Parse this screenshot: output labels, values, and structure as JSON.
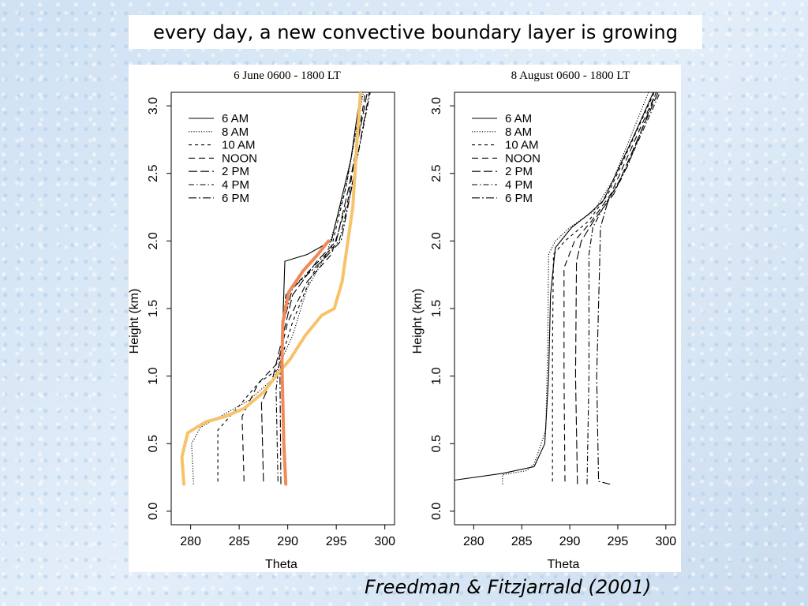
{
  "slide": {
    "title": "every day, a new convective boundary layer is growing",
    "citation": "Freedman & Fitzjarrald (2001)"
  },
  "colors": {
    "highlight_orange_light": "#f7c36a",
    "highlight_orange_dark": "#f08a5a",
    "line": "#000000"
  },
  "chart_data": [
    {
      "type": "line",
      "title": "6 June 0600 - 1800 LT",
      "xlabel": "Theta",
      "ylabel": "Height (km)",
      "xlim": [
        278,
        301
      ],
      "ylim": [
        -0.1,
        3.1
      ],
      "xticks": [
        "280",
        "285",
        "290",
        "295",
        "300"
      ],
      "yticks": [
        "0.0",
        "0.5",
        "1.0",
        "1.5",
        "2.0",
        "2.5",
        "3.0"
      ],
      "legend_position": "top-left",
      "series": [
        {
          "name": "6 AM",
          "style": "solid",
          "points": [
            [
              289.8,
              0.2
            ],
            [
              289.5,
              0.5
            ],
            [
              289.5,
              1.0
            ],
            [
              289.5,
              1.4
            ],
            [
              289.7,
              1.85
            ],
            [
              292,
              1.9
            ],
            [
              294.5,
              2.0
            ],
            [
              295.5,
              2.3
            ],
            [
              296.5,
              2.6
            ],
            [
              297.5,
              3.1
            ]
          ]
        },
        {
          "name": "8 AM",
          "style": "dotted",
          "points": [
            [
              280.3,
              0.2
            ],
            [
              280.1,
              0.5
            ],
            [
              281,
              0.62
            ],
            [
              283,
              0.7
            ],
            [
              286,
              0.82
            ],
            [
              288.5,
              0.98
            ],
            [
              290.5,
              1.3
            ],
            [
              292,
              1.65
            ],
            [
              294,
              1.9
            ],
            [
              296,
              2.4
            ],
            [
              297.8,
              3.1
            ]
          ]
        },
        {
          "name": "10 AM",
          "style": "dashed",
          "points": [
            [
              282.8,
              0.22
            ],
            [
              282.8,
              0.6
            ],
            [
              285,
              0.78
            ],
            [
              287,
              0.95
            ],
            [
              289,
              1.05
            ],
            [
              290.5,
              1.4
            ],
            [
              292.5,
              1.75
            ],
            [
              294.5,
              1.95
            ],
            [
              296,
              2.4
            ],
            [
              297.7,
              3.1
            ]
          ]
        },
        {
          "name": "NOON",
          "style": "longdash",
          "points": [
            [
              285.5,
              0.22
            ],
            [
              285.3,
              0.7
            ],
            [
              287,
              0.95
            ],
            [
              289,
              1.1
            ],
            [
              290,
              1.4
            ],
            [
              292,
              1.7
            ],
            [
              294.5,
              1.9
            ],
            [
              296.2,
              2.3
            ],
            [
              298,
              3.1
            ]
          ]
        },
        {
          "name": "2 PM",
          "style": "longdash2",
          "points": [
            [
              287.5,
              0.22
            ],
            [
              287.3,
              0.8
            ],
            [
              288.5,
              1.0
            ],
            [
              289.5,
              1.3
            ],
            [
              290.5,
              1.6
            ],
            [
              293,
              1.85
            ],
            [
              295,
              2.0
            ],
            [
              296.3,
              2.4
            ],
            [
              298.2,
              3.1
            ]
          ]
        },
        {
          "name": "4 PM",
          "style": "dashdot",
          "points": [
            [
              289,
              0.22
            ],
            [
              288.8,
              0.9
            ],
            [
              289.3,
              1.2
            ],
            [
              289.8,
              1.6
            ],
            [
              292.5,
              1.8
            ],
            [
              295.3,
              2.0
            ],
            [
              296.3,
              2.3
            ],
            [
              298.5,
              3.1
            ]
          ]
        },
        {
          "name": "6 PM",
          "style": "longdashdot",
          "points": [
            [
              289.3,
              0.2
            ],
            [
              289.2,
              1.0
            ],
            [
              289.6,
              1.4
            ],
            [
              290.5,
              1.65
            ],
            [
              293.5,
              1.85
            ],
            [
              295.5,
              2.0
            ],
            [
              296.6,
              2.4
            ],
            [
              298.4,
              3.1
            ]
          ]
        }
      ],
      "highlights": [
        {
          "color": "#f7c36a",
          "points": [
            [
              279.3,
              0.2
            ],
            [
              279.1,
              0.4
            ],
            [
              279.7,
              0.58
            ],
            [
              281.5,
              0.66
            ],
            [
              283.5,
              0.7
            ],
            [
              285.5,
              0.76
            ],
            [
              287.5,
              0.88
            ],
            [
              289,
              1.02
            ],
            [
              290.2,
              1.12
            ],
            [
              291.8,
              1.3
            ],
            [
              293.5,
              1.45
            ],
            [
              294.8,
              1.5
            ],
            [
              295.6,
              1.7
            ],
            [
              296.1,
              1.95
            ],
            [
              296.7,
              2.25
            ],
            [
              297.1,
              2.7
            ],
            [
              297.5,
              3.1
            ]
          ]
        },
        {
          "color": "#f08a5a",
          "points": [
            [
              289.8,
              0.2
            ],
            [
              289.6,
              0.5
            ],
            [
              289.5,
              0.8
            ],
            [
              289.4,
              1.1
            ],
            [
              289.5,
              1.4
            ],
            [
              290.1,
              1.62
            ],
            [
              291.6,
              1.78
            ],
            [
              293.1,
              1.9
            ],
            [
              294.2,
              2.0
            ]
          ]
        }
      ]
    },
    {
      "type": "line",
      "title": "8 August 0600 - 1800 LT",
      "xlabel": "Theta",
      "ylabel": "Height (km)",
      "xlim": [
        278,
        301
      ],
      "ylim": [
        -0.1,
        3.1
      ],
      "xticks": [
        "280",
        "285",
        "290",
        "295",
        "300"
      ],
      "yticks": [
        "0.0",
        "0.5",
        "1.0",
        "1.5",
        "2.0",
        "2.5",
        "3.0"
      ],
      "legend_position": "top-left",
      "series": [
        {
          "name": "6 AM",
          "style": "solid",
          "points": [
            [
              278,
              0.23
            ],
            [
              283,
              0.28
            ],
            [
              286.3,
              0.33
            ],
            [
              287.4,
              0.5
            ],
            [
              287.8,
              1.0
            ],
            [
              288,
              1.6
            ],
            [
              288.5,
              1.95
            ],
            [
              290.2,
              2.1
            ],
            [
              292,
              2.2
            ],
            [
              293.5,
              2.3
            ],
            [
              294.5,
              2.45
            ],
            [
              296.5,
              2.75
            ],
            [
              298.7,
              3.1
            ]
          ]
        },
        {
          "name": "8 AM",
          "style": "dotted",
          "points": [
            [
              283,
              0.2
            ],
            [
              283,
              0.27
            ],
            [
              285.5,
              0.3
            ],
            [
              286.3,
              0.35
            ],
            [
              287.5,
              0.6
            ],
            [
              287.7,
              1.2
            ],
            [
              287.8,
              1.9
            ],
            [
              288.5,
              2.0
            ],
            [
              290,
              2.1
            ],
            [
              292.5,
              2.22
            ],
            [
              294.5,
              2.45
            ],
            [
              298.2,
              3.1
            ]
          ]
        },
        {
          "name": "10 AM",
          "style": "dashed",
          "points": [
            [
              288.2,
              0.22
            ],
            [
              288.2,
              1.2
            ],
            [
              288.3,
              1.9
            ],
            [
              289.5,
              2.0
            ],
            [
              292,
              2.15
            ],
            [
              294,
              2.35
            ],
            [
              298.8,
              3.1
            ]
          ]
        },
        {
          "name": "NOON",
          "style": "longdash",
          "points": [
            [
              289.5,
              0.22
            ],
            [
              289.4,
              1.0
            ],
            [
              289.4,
              1.8
            ],
            [
              290.5,
              2.0
            ],
            [
              292.3,
              2.15
            ],
            [
              294.3,
              2.35
            ],
            [
              299,
              3.1
            ]
          ]
        },
        {
          "name": "2 PM",
          "style": "longdash2",
          "points": [
            [
              290.8,
              0.2
            ],
            [
              290.6,
              1.0
            ],
            [
              290.7,
              1.85
            ],
            [
              291.2,
              2.0
            ],
            [
              292.5,
              2.15
            ],
            [
              294.6,
              2.35
            ],
            [
              299.2,
              3.1
            ]
          ]
        },
        {
          "name": "4 PM",
          "style": "dashdot",
          "points": [
            [
              291.8,
              0.2
            ],
            [
              292,
              1.0
            ],
            [
              292,
              1.9
            ],
            [
              292.4,
              2.1
            ],
            [
              293.5,
              2.25
            ],
            [
              295.3,
              2.45
            ],
            [
              299.4,
              3.1
            ]
          ]
        },
        {
          "name": "6 PM",
          "style": "longdashdot",
          "points": [
            [
              294.2,
              0.2
            ],
            [
              293,
              0.22
            ],
            [
              292.8,
              1.0
            ],
            [
              293.1,
              1.8
            ],
            [
              293.2,
              2.1
            ],
            [
              294,
              2.3
            ],
            [
              296,
              2.55
            ],
            [
              299,
              3.1
            ]
          ]
        }
      ],
      "highlights": []
    }
  ]
}
